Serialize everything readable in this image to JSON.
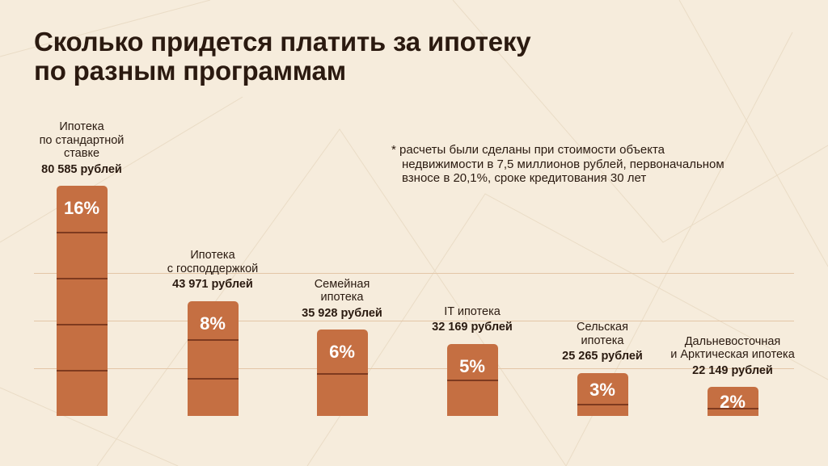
{
  "header": {
    "title_lines": [
      "Сколько придется платить за ипотеку",
      "по разным программам"
    ]
  },
  "footnote": {
    "lines": [
      "* расчеты были сделаны при стоимости объекта",
      "недвижимости в 7,5 миллионов рублей, первоначальном",
      "взносе в 20,1%, сроке кредитования 30 лет"
    ]
  },
  "colors": {
    "background": "#f6ecdc",
    "bar": "#c56f42",
    "bar_divider": "#7e3a1f",
    "title": "#2b1a10"
  },
  "chart_data": {
    "type": "bar",
    "title": "Сколько придется платить за ипотеку по разным программам",
    "xlabel": "",
    "ylabel": "",
    "ylim": [
      0,
      16
    ],
    "grid": true,
    "categories": [
      [
        "Ипотека",
        "по стандартной",
        "ставке"
      ],
      [
        "Ипотека",
        "с господдержкой"
      ],
      [
        "Семейная",
        "ипотека"
      ],
      [
        "IT ипотека"
      ],
      [
        "Сельская",
        "ипотека"
      ],
      [
        "Дальневосточная",
        "и Арктическая ипотека"
      ]
    ],
    "values": [
      16,
      8,
      6,
      5,
      3,
      2
    ],
    "value_labels": [
      "16%",
      "8%",
      "6%",
      "5%",
      "3%",
      "2%"
    ],
    "monthly_payments": [
      "80 585 рублей",
      "43 971 рублей",
      "35 928 рублей",
      "32 169 рублей",
      "25 265 рублей",
      "22 149 рублей"
    ]
  }
}
